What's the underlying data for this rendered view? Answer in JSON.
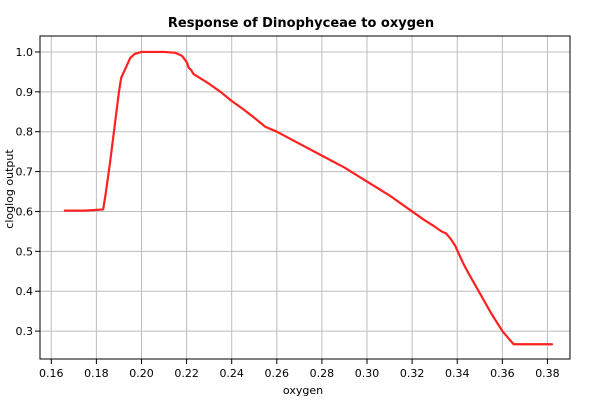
{
  "chart_data": {
    "type": "line",
    "title": "Response of Dinophyceae to oxygen",
    "xlabel": "oxygen",
    "ylabel": "cloglog output",
    "xlim": [
      0.155,
      0.39
    ],
    "ylim": [
      0.23,
      1.04
    ],
    "x_ticks": [
      0.16,
      0.18,
      0.2,
      0.22,
      0.24,
      0.26,
      0.28,
      0.3,
      0.32,
      0.34,
      0.36,
      0.38
    ],
    "y_ticks": [
      0.3,
      0.4,
      0.5,
      0.6,
      0.7,
      0.8,
      0.9,
      1.0
    ],
    "x_tick_labels": [
      "0.16",
      "0.18",
      "0.20",
      "0.22",
      "0.24",
      "0.26",
      "0.28",
      "0.30",
      "0.32",
      "0.34",
      "0.36",
      "0.38"
    ],
    "y_tick_labels": [
      "0.3",
      "0.4",
      "0.5",
      "0.6",
      "0.7",
      "0.8",
      "0.9",
      "1.0"
    ],
    "grid": true,
    "series": [
      {
        "color": "#ff2020",
        "x": [
          0.166,
          0.175,
          0.183,
          0.184,
          0.186,
          0.188,
          0.19,
          0.191,
          0.193,
          0.195,
          0.197,
          0.2,
          0.205,
          0.21,
          0.215,
          0.218,
          0.22,
          0.221,
          0.222,
          0.223,
          0.225,
          0.23,
          0.235,
          0.24,
          0.245,
          0.25,
          0.255,
          0.26,
          0.27,
          0.28,
          0.29,
          0.3,
          0.31,
          0.32,
          0.325,
          0.33,
          0.333,
          0.335,
          0.337,
          0.339,
          0.341,
          0.343,
          0.345,
          0.35,
          0.355,
          0.36,
          0.363,
          0.365,
          0.37,
          0.375,
          0.38,
          0.382
        ],
        "y": [
          0.602,
          0.602,
          0.605,
          0.64,
          0.72,
          0.81,
          0.9,
          0.935,
          0.96,
          0.985,
          0.995,
          1.0,
          1.0,
          1.0,
          0.998,
          0.99,
          0.975,
          0.96,
          0.955,
          0.945,
          0.938,
          0.92,
          0.9,
          0.877,
          0.857,
          0.835,
          0.812,
          0.8,
          0.77,
          0.74,
          0.71,
          0.675,
          0.64,
          0.6,
          0.58,
          0.562,
          0.55,
          0.545,
          0.532,
          0.515,
          0.49,
          0.466,
          0.445,
          0.395,
          0.345,
          0.3,
          0.28,
          0.267,
          0.267,
          0.267,
          0.267,
          0.267
        ]
      }
    ]
  }
}
